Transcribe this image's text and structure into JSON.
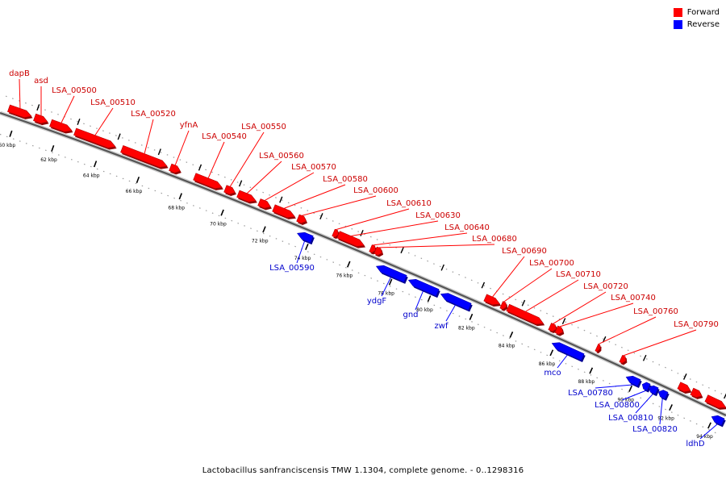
{
  "legend": {
    "forward": {
      "label": "Forward",
      "color": "#ff0000"
    },
    "reverse": {
      "label": "Reverse",
      "color": "#0000ff"
    }
  },
  "caption": "Lactobacillus sanfranciscensis TMW 1.1304, complete genome. - 0..1298316",
  "ticks": [
    "60 kbp",
    "62 kbp",
    "64 kbp",
    "66 kbp",
    "68 kbp",
    "70 kbp",
    "72 kbp",
    "74 kbp",
    "76 kbp",
    "78 kbp",
    "80 kbp",
    "82 kbp",
    "84 kbp",
    "86 kbp",
    "88 kbp",
    "90 kbp",
    "92 kbp",
    "94 kbp"
  ],
  "forward_genes": [
    "dapB",
    "asd",
    "LSA_00500",
    "LSA_00510",
    "LSA_00520",
    "yfnA",
    "LSA_00540",
    "LSA_00550",
    "LSA_00560",
    "LSA_00570",
    "LSA_00580",
    "LSA_00600",
    "LSA_00610",
    "LSA_00630",
    "LSA_00640",
    "LSA_00680",
    "LSA_00690",
    "LSA_00700",
    "LSA_00710",
    "LSA_00720",
    "LSA_00740",
    "LSA_00760",
    "LSA_00790"
  ],
  "reverse_genes": [
    "LSA_00590",
    "ydgF",
    "gnd",
    "zwf",
    "mco",
    "LSA_00780",
    "LSA_00800",
    "LSA_00810",
    "LSA_00820",
    "ldhD"
  ]
}
